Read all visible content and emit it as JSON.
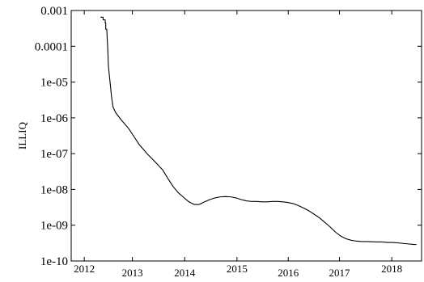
{
  "chart_data": {
    "type": "line",
    "title": "",
    "xlabel": "",
    "ylabel": "ILLIQ",
    "yscale": "log",
    "grid": false,
    "ylim": [
      1e-10,
      0.001
    ],
    "xlim": [
      2011.75,
      2018.45
    ],
    "y_ticks": [
      {
        "value": 0.001,
        "label": "0.001"
      },
      {
        "value": 0.0001,
        "label": "0.0001"
      },
      {
        "value": 1e-05,
        "label": "1e-05"
      },
      {
        "value": 1e-06,
        "label": "1e-06"
      },
      {
        "value": 1e-07,
        "label": "1e-07"
      },
      {
        "value": 1e-08,
        "label": "1e-08"
      },
      {
        "value": 1e-09,
        "label": "1e-09"
      },
      {
        "value": 1e-10,
        "label": "1e-10"
      }
    ],
    "x_ticks": [
      {
        "value": 2012.0,
        "label": "2012",
        "row": "upper"
      },
      {
        "value": 2012.92,
        "label": "2013",
        "row": "lower"
      },
      {
        "value": 2013.92,
        "label": "2014",
        "row": "lower"
      },
      {
        "value": 2014.92,
        "label": "2015",
        "row": "upper"
      },
      {
        "value": 2015.9,
        "label": "2016",
        "row": "lower"
      },
      {
        "value": 2016.88,
        "label": "2017",
        "row": "lower"
      },
      {
        "value": 2017.88,
        "label": "2018",
        "row": "upper"
      }
    ],
    "series": [
      {
        "color": "#000000",
        "x": [
          2012.31,
          2012.36,
          2012.36,
          2012.4,
          2012.4,
          2012.41,
          2012.41,
          2012.43,
          2012.44,
          2012.45,
          2012.46,
          2012.48,
          2012.5,
          2012.52,
          2012.55,
          2012.6,
          2012.7,
          2012.85,
          2012.95,
          2013.05,
          2013.2,
          2013.35,
          2013.5,
          2013.6,
          2013.7,
          2013.8,
          2013.9,
          2014.0,
          2014.1,
          2014.2,
          2014.3,
          2014.4,
          2014.5,
          2014.6,
          2014.7,
          2014.8,
          2014.9,
          2015.0,
          2015.1,
          2015.2,
          2015.3,
          2015.4,
          2015.5,
          2015.6,
          2015.7,
          2015.8,
          2015.9,
          2016.0,
          2016.1,
          2016.2,
          2016.3,
          2016.4,
          2016.5,
          2016.6,
          2016.7,
          2016.8,
          2016.9,
          2017.0,
          2017.1,
          2017.2,
          2017.3,
          2017.4,
          2017.5,
          2017.6,
          2017.7,
          2017.8,
          2017.9,
          2018.0,
          2018.1,
          2018.2,
          2018.3,
          2018.35
        ],
        "y": [
          0.00065,
          0.00065,
          0.00055,
          0.00055,
          0.00045,
          0.00045,
          0.0003,
          0.0003,
          0.00015,
          8e-05,
          3e-05,
          1.5e-05,
          8e-06,
          4e-06,
          2e-06,
          1.4e-06,
          9e-07,
          5e-07,
          3e-07,
          1.8e-07,
          1e-07,
          6e-08,
          3.5e-08,
          2e-08,
          1.2e-08,
          8e-09,
          6e-09,
          4.5e-09,
          3.8e-09,
          3.8e-09,
          4.5e-09,
          5.2e-09,
          5.8e-09,
          6.2e-09,
          6.3e-09,
          6.2e-09,
          5.8e-09,
          5.2e-09,
          4.8e-09,
          4.6e-09,
          4.6e-09,
          4.5e-09,
          4.5e-09,
          4.6e-09,
          4.6e-09,
          4.5e-09,
          4.3e-09,
          4e-09,
          3.5e-09,
          3e-09,
          2.5e-09,
          2e-09,
          1.6e-09,
          1.2e-09,
          9e-10,
          6.5e-10,
          5e-10,
          4.2e-10,
          3.8e-10,
          3.6e-10,
          3.5e-10,
          3.5e-10,
          3.45e-10,
          3.4e-10,
          3.4e-10,
          3.3e-10,
          3.3e-10,
          3.2e-10,
          3.1e-10,
          3e-10,
          2.9e-10,
          2.9e-10
        ]
      }
    ]
  }
}
